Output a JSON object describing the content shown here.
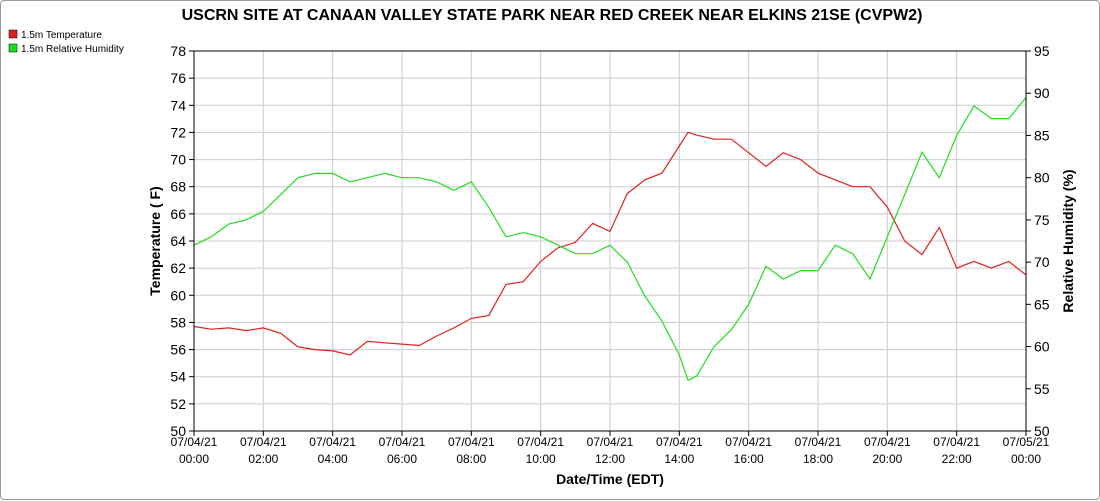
{
  "chart_data": {
    "type": "line",
    "title": "USCRN SITE AT CANAAN VALLEY STATE PARK NEAR RED CREEK NEAR ELKINS 21SE (CVPW2)",
    "xlabel": "Date/Time (EDT)",
    "ylabel_left": "Temperature ( F)",
    "ylabel_right": "Relative Humidity (%)",
    "xlim": [
      0,
      24
    ],
    "ylim_left": [
      50,
      78
    ],
    "ylim_right": [
      50,
      95
    ],
    "yticks_left": [
      "50",
      "52",
      "54",
      "56",
      "58",
      "60",
      "62",
      "64",
      "66",
      "68",
      "70",
      "72",
      "74",
      "76",
      "78"
    ],
    "yticks_right": [
      "50",
      "55",
      "60",
      "65",
      "70",
      "75",
      "80",
      "85",
      "90",
      "95"
    ],
    "xticks": [
      {
        "date": "07/04/21",
        "time": "00:00"
      },
      {
        "date": "07/04/21",
        "time": "02:00"
      },
      {
        "date": "07/04/21",
        "time": "04:00"
      },
      {
        "date": "07/04/21",
        "time": "06:00"
      },
      {
        "date": "07/04/21",
        "time": "08:00"
      },
      {
        "date": "07/04/21",
        "time": "10:00"
      },
      {
        "date": "07/04/21",
        "time": "12:00"
      },
      {
        "date": "07/04/21",
        "time": "14:00"
      },
      {
        "date": "07/04/21",
        "time": "16:00"
      },
      {
        "date": "07/04/21",
        "time": "18:00"
      },
      {
        "date": "07/04/21",
        "time": "20:00"
      },
      {
        "date": "07/04/21",
        "time": "22:00"
      },
      {
        "date": "07/05/21",
        "time": "00:00"
      }
    ],
    "grid": true,
    "legend_position": "top-left",
    "series": [
      {
        "name": "1.5m Temperature",
        "color": "#e02020",
        "axis": "left",
        "x": [
          0,
          0.5,
          1,
          1.5,
          2,
          2.5,
          3,
          3.5,
          4,
          4.5,
          5,
          5.5,
          6,
          6.5,
          7,
          7.5,
          8,
          8.5,
          9,
          9.5,
          10,
          10.5,
          11,
          11.5,
          12,
          12.5,
          13,
          13.5,
          14,
          14.25,
          14.5,
          15,
          15.5,
          16,
          16.5,
          17,
          17.5,
          18,
          18.5,
          19,
          19.5,
          20,
          20.5,
          21,
          21.5,
          22,
          22.5,
          23,
          23.5,
          24
        ],
        "values": [
          57.7,
          57.5,
          57.6,
          57.4,
          57.6,
          57.2,
          56.2,
          56.0,
          55.9,
          55.6,
          56.6,
          56.5,
          56.4,
          56.3,
          57.0,
          57.6,
          58.3,
          58.5,
          60.8,
          61.0,
          62.5,
          63.5,
          63.9,
          65.3,
          64.7,
          67.5,
          68.5,
          69.0,
          71.0,
          72.0,
          71.8,
          71.5,
          71.5,
          70.5,
          69.5,
          70.5,
          70.0,
          69.0,
          68.5,
          68.0,
          68.0,
          66.5,
          64.0,
          63.0,
          65.0,
          62.0,
          62.5,
          62.0,
          62.5,
          61.5
        ]
      },
      {
        "name": "1.5m Relative Humidity",
        "color": "#22dd22",
        "axis": "right",
        "x": [
          0,
          0.5,
          1,
          1.5,
          2,
          2.5,
          3,
          3.5,
          4,
          4.5,
          5,
          5.5,
          6,
          6.5,
          7,
          7.5,
          8,
          8.5,
          9,
          9.5,
          10,
          10.5,
          11,
          11.5,
          12,
          12.5,
          13,
          13.5,
          14,
          14.25,
          14.5,
          15,
          15.5,
          16,
          16.5,
          17,
          17.5,
          18,
          18.5,
          19,
          19.5,
          20,
          20.5,
          21,
          21.5,
          22,
          22.5,
          23,
          23.5,
          24
        ],
        "values": [
          72.0,
          73.0,
          74.5,
          75.0,
          76.0,
          78.0,
          80.0,
          80.5,
          80.5,
          79.5,
          80.0,
          80.5,
          80.0,
          80.0,
          79.5,
          78.5,
          79.5,
          76.5,
          73.0,
          73.5,
          73.0,
          72.0,
          71.0,
          71.0,
          72.0,
          70.0,
          66.0,
          63.0,
          59.0,
          56.0,
          56.5,
          60.0,
          62.0,
          65.0,
          69.5,
          68.0,
          69.0,
          69.0,
          72.0,
          71.0,
          68.0,
          73.0,
          78.0,
          83.0,
          80.0,
          85.0,
          88.5,
          87.0,
          87.0,
          89.5
        ]
      }
    ]
  }
}
